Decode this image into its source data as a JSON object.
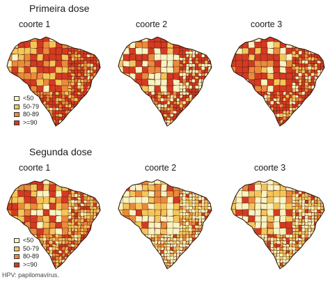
{
  "sections": [
    {
      "title": "Primeira dose",
      "cohorts": [
        "coorte 1",
        "coorte 2",
        "coorte 3"
      ]
    },
    {
      "title": "Segunda dose",
      "cohorts": [
        "coorte 1",
        "coorte 2",
        "coorte 3"
      ]
    }
  ],
  "legend": [
    {
      "label": "<50",
      "color": "#f8f3c0"
    },
    {
      "label": "50-79",
      "color": "#f4c65a"
    },
    {
      "label": "80-89",
      "color": "#ec8a3c"
    },
    {
      "label": ">=90",
      "color": "#d43a22"
    }
  ],
  "footnote": "HPV: papilomavírus."
}
